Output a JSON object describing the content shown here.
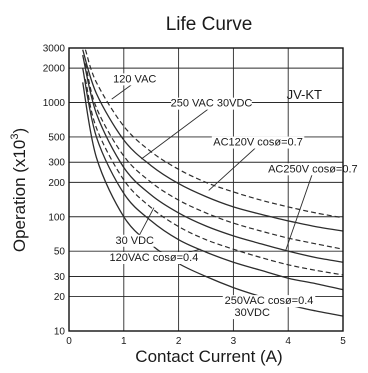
{
  "chart_data": {
    "type": "line",
    "title": "Life Curve",
    "xlabel": "Contact Current (A)",
    "ylabel": "Operation (x10",
    "ylabel_sup": "3",
    "ylabel_close": ")",
    "model": "JV-KT",
    "x_scale": "linear",
    "y_scale": "log",
    "xlim": [
      0,
      5
    ],
    "ylim": [
      10,
      3000
    ],
    "x_ticks": [
      "0",
      "1",
      "2",
      "3",
      "4",
      "5"
    ],
    "y_ticks": [
      "3000",
      "2000",
      "1000",
      "500",
      "300",
      "200",
      "100",
      "50",
      "30",
      "20",
      "10"
    ],
    "grid": true,
    "series": [
      {
        "name": "120 VAC",
        "style": "dashed",
        "x": [
          0.3,
          0.5,
          1,
          1.5,
          2,
          2.5,
          3,
          3.5,
          4,
          4.5,
          5
        ],
        "y": [
          2900,
          1500,
          620,
          370,
          260,
          200,
          165,
          140,
          122,
          108,
          98
        ]
      },
      {
        "name": "250 VAC 30VDC",
        "style": "solid",
        "x": [
          0.25,
          0.5,
          1,
          1.5,
          2,
          2.5,
          3,
          3.5,
          4,
          4.5,
          5
        ],
        "y": [
          2900,
          1200,
          470,
          280,
          195,
          150,
          122,
          105,
          92,
          82,
          75
        ]
      },
      {
        "name": "AC120V cosø=0.7",
        "style": "dashed",
        "x": [
          0.3,
          0.5,
          1,
          1.5,
          2,
          2.5,
          3,
          3.5,
          4,
          4.5,
          5
        ],
        "y": [
          2200,
          900,
          340,
          200,
          140,
          108,
          88,
          75,
          65,
          58,
          52
        ]
      },
      {
        "name": "AC250V cosø=0.7",
        "style": "solid",
        "x": [
          0.25,
          0.5,
          1,
          1.5,
          2,
          2.5,
          3,
          3.5,
          4,
          4.5,
          5
        ],
        "y": [
          2600,
          800,
          270,
          155,
          108,
          83,
          68,
          58,
          50,
          44,
          40
        ]
      },
      {
        "name": "30 VDC",
        "style": "dashed",
        "x": [
          0.3,
          0.5,
          1,
          1.5,
          2,
          2.5,
          3,
          3.5,
          4,
          4.5,
          5
        ],
        "y": [
          1600,
          600,
          210,
          120,
          82,
          63,
          52,
          44,
          38,
          34,
          31
        ]
      },
      {
        "name": "120VAC cosø=0.4",
        "style": "solid",
        "x": [
          0.25,
          0.5,
          1,
          1.5,
          2,
          2.5,
          3,
          3.5,
          4,
          4.5,
          5
        ],
        "y": [
          2000,
          500,
          160,
          92,
          63,
          49,
          40,
          34,
          29,
          26,
          23
        ]
      },
      {
        "name": "250VAC cosø=0.4",
        "style": "solid",
        "x": [
          0.25,
          0.5,
          1,
          1.5,
          2,
          2.5,
          3,
          3.5,
          4,
          4.5,
          5
        ],
        "y": [
          1500,
          330,
          100,
          57,
          39,
          30,
          24,
          20,
          17,
          15,
          13.5
        ]
      }
    ],
    "annotations": [
      {
        "text": "120 VAC",
        "series": 0
      },
      {
        "text": "250 VAC 30VDC",
        "series": 1
      },
      {
        "text": "AC120V cosø=0.7",
        "series": 2
      },
      {
        "text": "AC250V cosø=0.7",
        "series": 3
      },
      {
        "text": "30 VDC",
        "series": 4
      },
      {
        "text": "120VAC cosø=0.4",
        "series": 5
      },
      {
        "text": "250VAC cosø=0.4",
        "series": 6
      },
      {
        "text": "30VDC",
        "series": 6
      }
    ]
  }
}
